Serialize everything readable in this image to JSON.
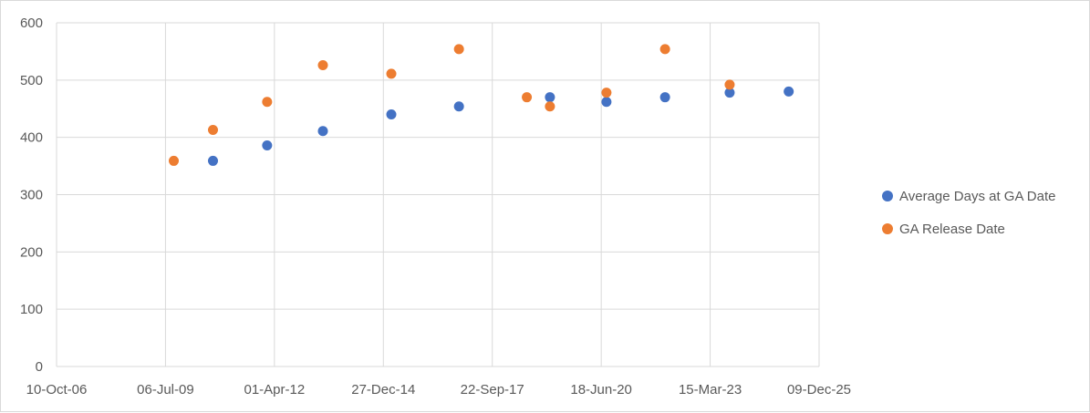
{
  "chart_data": {
    "type": "scatter",
    "title": "",
    "xlabel": "",
    "ylabel": "",
    "x_axis": {
      "type": "date",
      "min": "2006-10-10",
      "max": "2025-12-09",
      "tick_dates": [
        "2006-10-10",
        "2009-07-06",
        "2012-04-01",
        "2014-12-27",
        "2017-09-22",
        "2020-06-18",
        "2023-03-15",
        "2025-12-09"
      ],
      "tick_labels": [
        "10-Oct-06",
        "06-Jul-09",
        "01-Apr-12",
        "27-Dec-14",
        "22-Sep-17",
        "18-Jun-20",
        "15-Mar-23",
        "09-Dec-25"
      ]
    },
    "y_axis": {
      "min": 0,
      "max": 600,
      "ticks": [
        0,
        100,
        200,
        300,
        400,
        500,
        600
      ],
      "tick_labels": [
        "0",
        "100",
        "200",
        "300",
        "400",
        "500",
        "600"
      ]
    },
    "grid": "on",
    "legend_position": "right",
    "series": [
      {
        "name": "Average Days at GA Date",
        "color": "#4472C4",
        "points": [
          {
            "x": "2010-09-15",
            "y": 359
          },
          {
            "x": "2012-01-25",
            "y": 386
          },
          {
            "x": "2013-06-20",
            "y": 411
          },
          {
            "x": "2015-03-10",
            "y": 440
          },
          {
            "x": "2016-11-20",
            "y": 454
          },
          {
            "x": "2019-03-05",
            "y": 470
          },
          {
            "x": "2020-08-05",
            "y": 462
          },
          {
            "x": "2022-01-25",
            "y": 470
          },
          {
            "x": "2023-09-10",
            "y": 478
          },
          {
            "x": "2025-03-05",
            "y": 480
          }
        ]
      },
      {
        "name": "GA Release Date",
        "color": "#ED7D31",
        "points": [
          {
            "x": "2009-09-20",
            "y": 359
          },
          {
            "x": "2010-09-15",
            "y": 413
          },
          {
            "x": "2012-01-25",
            "y": 462
          },
          {
            "x": "2013-06-20",
            "y": 526
          },
          {
            "x": "2015-03-10",
            "y": 511
          },
          {
            "x": "2016-11-20",
            "y": 554
          },
          {
            "x": "2018-08-05",
            "y": 470
          },
          {
            "x": "2019-03-05",
            "y": 454
          },
          {
            "x": "2020-08-05",
            "y": 478
          },
          {
            "x": "2022-01-25",
            "y": 554
          },
          {
            "x": "2023-09-10",
            "y": 492
          }
        ]
      }
    ]
  }
}
